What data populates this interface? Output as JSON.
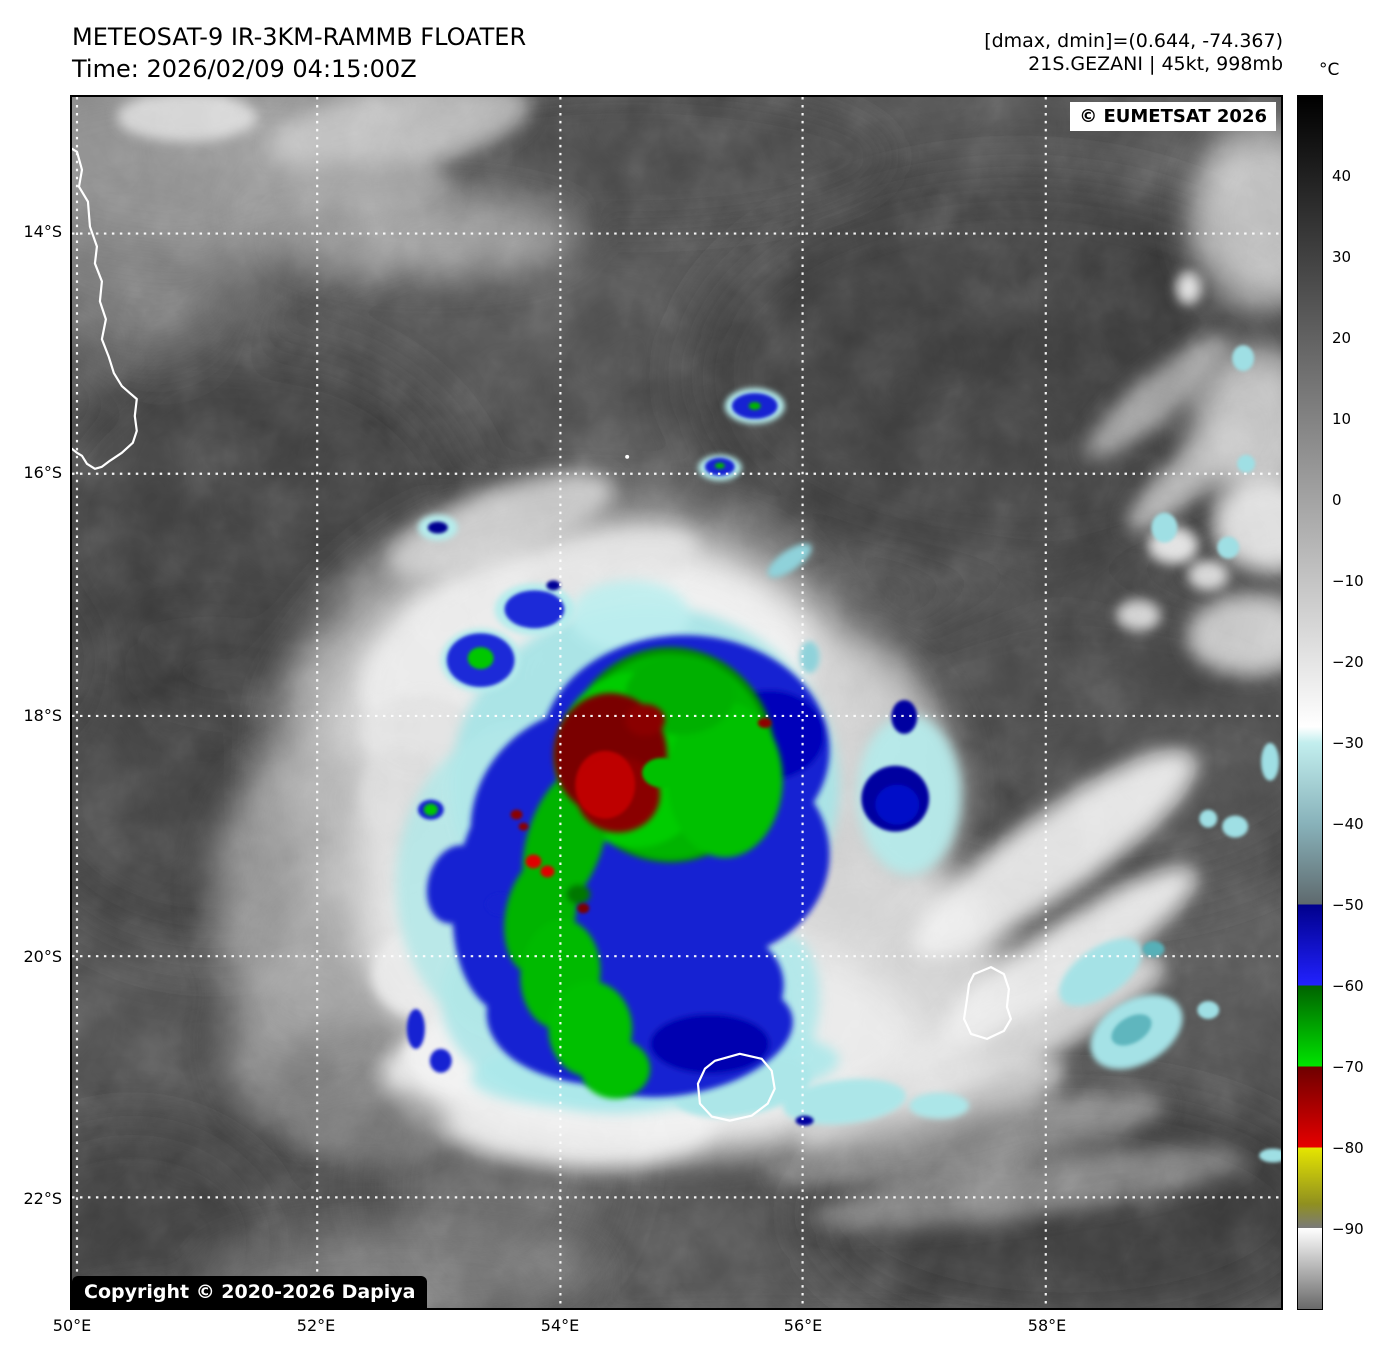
{
  "header": {
    "title": "METEOSAT-9 IR-3KM-RAMMB FLOATER",
    "time": "Time: 2026/02/09 04:15:00Z",
    "dmax_dmin": "[dmax, dmin]=(0.644, -74.367)",
    "storm": "21S.GEZANI | 45kt, 998mb"
  },
  "map": {
    "eumetsat_badge": "© EUMETSAT 2026",
    "copyright_badge": "Copyright © 2020-2026 Dapiya",
    "lat_labels": [
      "14°S",
      "16°S",
      "18°S",
      "20°S",
      "22°S"
    ],
    "lon_labels": [
      "50°E",
      "52°E",
      "54°E",
      "56°E",
      "58°E"
    ]
  },
  "colorbar": {
    "unit": "°C",
    "top_temp": 50,
    "bottom_temp": -100,
    "tick_values": [
      40,
      30,
      20,
      10,
      0,
      -10,
      -20,
      -30,
      -40,
      -50,
      -60,
      -70,
      -80,
      -90
    ],
    "tick_labels": [
      "40",
      "30",
      "20",
      "10",
      "0",
      "−10",
      "−20",
      "−30",
      "−40",
      "−50",
      "−60",
      "−70",
      "−80",
      "−90"
    ],
    "stops": [
      [
        50,
        "#000000"
      ],
      [
        -28,
        "#ffffff"
      ],
      [
        -30,
        "#c2eeee"
      ],
      [
        -40,
        "#88b2ba"
      ],
      [
        -50,
        "#5e696d"
      ],
      [
        -50,
        "#00008c"
      ],
      [
        -60,
        "#2222ff"
      ],
      [
        -60,
        "#006200"
      ],
      [
        -70,
        "#00e400"
      ],
      [
        -70,
        "#6e0000"
      ],
      [
        -80,
        "#e60000"
      ],
      [
        -80,
        "#e6e600"
      ],
      [
        -87,
        "#90901f"
      ],
      [
        -90,
        "#7a7a7a"
      ],
      [
        -90,
        "#ffffff"
      ],
      [
        -100,
        "#696969"
      ]
    ],
    "feature_colors": {
      "cyan": "#aee6e8",
      "blue": "#1520d2",
      "navy": "#0000a0",
      "green": "#00bc00",
      "dark_red": "#7a0404",
      "red": "#e00000"
    }
  }
}
